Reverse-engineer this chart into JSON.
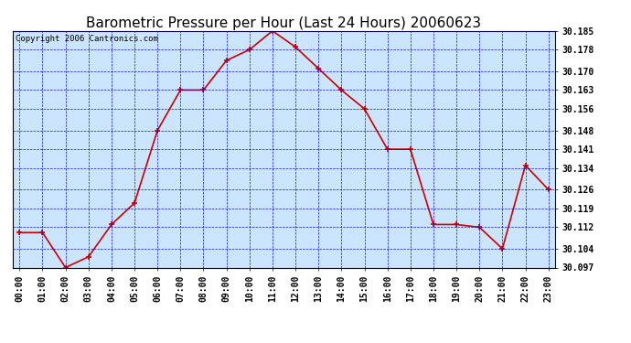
{
  "title": "Barometric Pressure per Hour (Last 24 Hours) 20060623",
  "copyright": "Copyright 2006 Cantronics.com",
  "hours": [
    "00:00",
    "01:00",
    "02:00",
    "03:00",
    "04:00",
    "05:00",
    "06:00",
    "07:00",
    "08:00",
    "09:00",
    "10:00",
    "11:00",
    "12:00",
    "13:00",
    "14:00",
    "15:00",
    "16:00",
    "17:00",
    "18:00",
    "19:00",
    "20:00",
    "21:00",
    "22:00",
    "23:00"
  ],
  "pressure": [
    30.11,
    30.11,
    30.097,
    30.101,
    30.113,
    30.121,
    30.148,
    30.163,
    30.163,
    30.174,
    30.178,
    30.185,
    30.179,
    30.171,
    30.163,
    30.156,
    30.141,
    30.141,
    30.113,
    30.113,
    30.112,
    30.104,
    30.135,
    30.126
  ],
  "ylim_min": 30.097,
  "ylim_max": 30.185,
  "yticks": [
    30.097,
    30.104,
    30.112,
    30.119,
    30.126,
    30.134,
    30.141,
    30.148,
    30.156,
    30.163,
    30.17,
    30.178,
    30.185
  ],
  "line_color": "#cc0000",
  "marker": "+",
  "marker_color": "#cc0000",
  "bg_color": "#cce5ff",
  "grid_color": "#0000bb",
  "title_fontsize": 11,
  "copyright_fontsize": 6.5,
  "tick_fontsize": 7,
  "ytick_fontsize": 7
}
